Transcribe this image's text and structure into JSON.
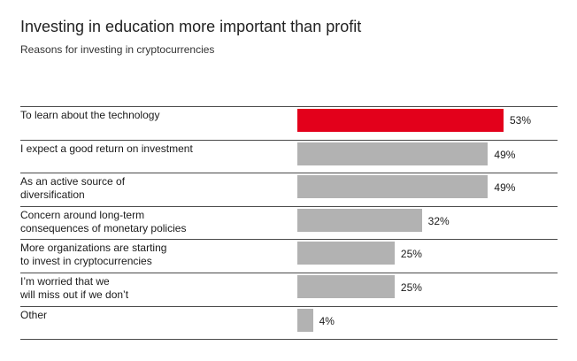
{
  "chart_data": {
    "type": "bar",
    "orientation": "horizontal",
    "title": "Investing in education more important than profit",
    "subtitle": "Reasons for investing in cryptocurrencies",
    "categories": [
      "To learn about the technology",
      "I expect a good return on investment",
      "As an active source of diversification",
      "Concern around long-term consequences of monetary policies",
      "More organizations are starting to invest in cryptocurrencies",
      "I’m worried that we will miss out if we don’t",
      "Other"
    ],
    "category_lines": [
      [
        "To learn about the technology"
      ],
      [
        "I expect a good return on investment"
      ],
      [
        "As an active source of",
        "diversification"
      ],
      [
        "Concern around long-term",
        "consequences of monetary policies"
      ],
      [
        "More organizations are starting",
        "to invest in cryptocurrencies"
      ],
      [
        "I’m worried that we",
        "will miss out if we don’t"
      ],
      [
        "Other"
      ]
    ],
    "values": [
      53,
      49,
      49,
      32,
      25,
      25,
      4
    ],
    "value_labels": [
      "53%",
      "49%",
      "49%",
      "32%",
      "25%",
      "25%",
      "4%"
    ],
    "colors": [
      "#e3001b",
      "#b2b2b2",
      "#b2b2b2",
      "#b2b2b2",
      "#b2b2b2",
      "#b2b2b2",
      "#b2b2b2"
    ],
    "xlim": [
      0,
      100
    ],
    "grid": false,
    "legend": "none"
  }
}
